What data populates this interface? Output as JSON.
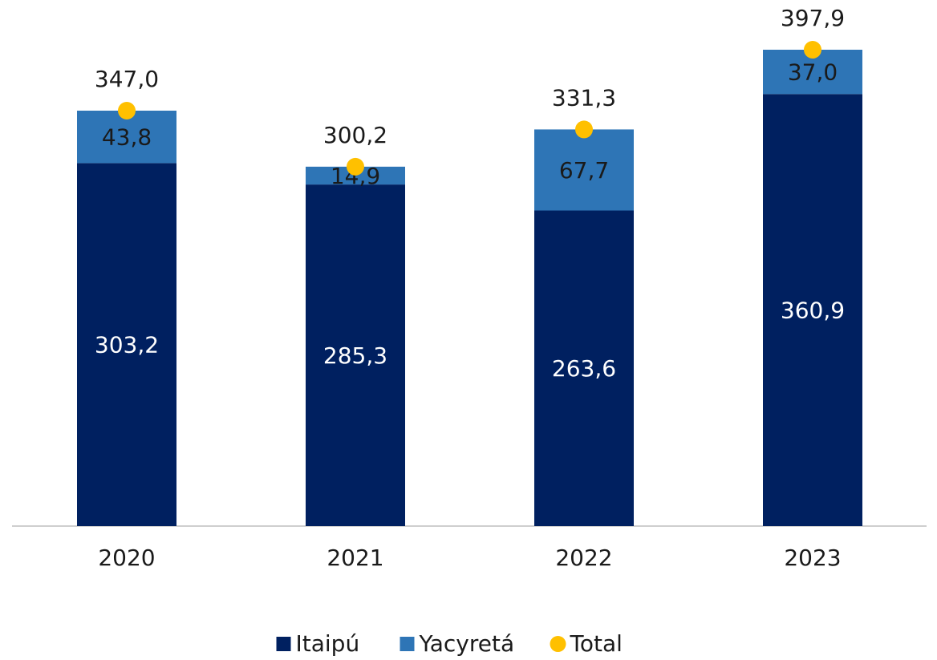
{
  "chart_data": {
    "type": "bar",
    "stacked": true,
    "categories": [
      "2020",
      "2021",
      "2022",
      "2023"
    ],
    "series": [
      {
        "name": "Itaipú",
        "color": "#002060",
        "values": [
          303.2,
          285.3,
          263.6,
          360.9
        ],
        "value_labels": [
          "303,2",
          "285,3",
          "263,6",
          "360,9"
        ],
        "label_color": "#ffffff"
      },
      {
        "name": "Yacyretá",
        "color": "#2e75b6",
        "values": [
          43.8,
          14.9,
          67.7,
          37.0
        ],
        "value_labels": [
          "43,8",
          "14,9",
          "67,7",
          "37,0"
        ],
        "label_color": "#1a1a1a"
      },
      {
        "name": "Total",
        "type": "scatter",
        "color": "#ffc000",
        "values": [
          347.0,
          300.2,
          331.3,
          397.9
        ],
        "value_labels": [
          "347,0",
          "300,2",
          "331,3",
          "397,9"
        ],
        "label_color": "#1a1a1a"
      }
    ]
  }
}
